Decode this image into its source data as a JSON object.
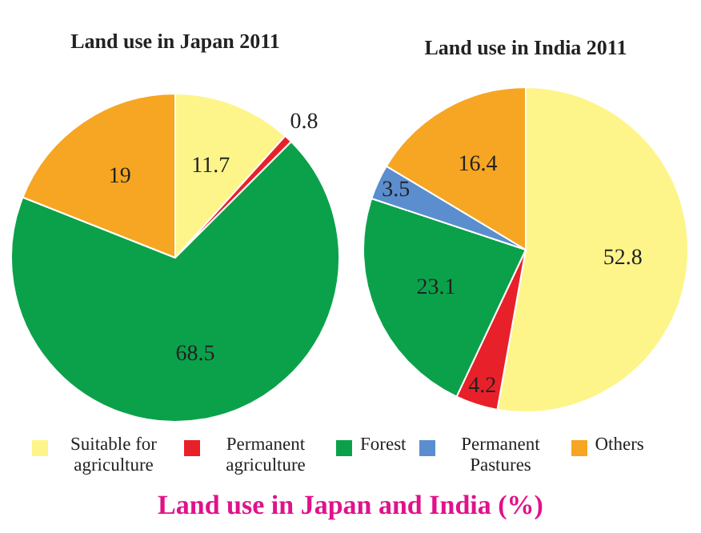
{
  "chart_data": {
    "type": "pie",
    "title": "Land use in Japan and India (%)",
    "categories": [
      "Suitable for agriculture",
      "Permanent agriculture",
      "Forest",
      "Permanent Pastures",
      "Others"
    ],
    "colors": [
      "#fdf58a",
      "#e8202a",
      "#0ba14b",
      "#5b8ecf",
      "#f6a623"
    ],
    "data_labels": true,
    "legend": "bottom",
    "series": [
      {
        "name": "Land use in Japan 2011",
        "values": [
          11.7,
          0.8,
          68.5,
          null,
          19
        ]
      },
      {
        "name": "Land use in India 2011",
        "values": [
          52.8,
          4.2,
          23.1,
          3.5,
          16.4
        ]
      }
    ]
  }
}
